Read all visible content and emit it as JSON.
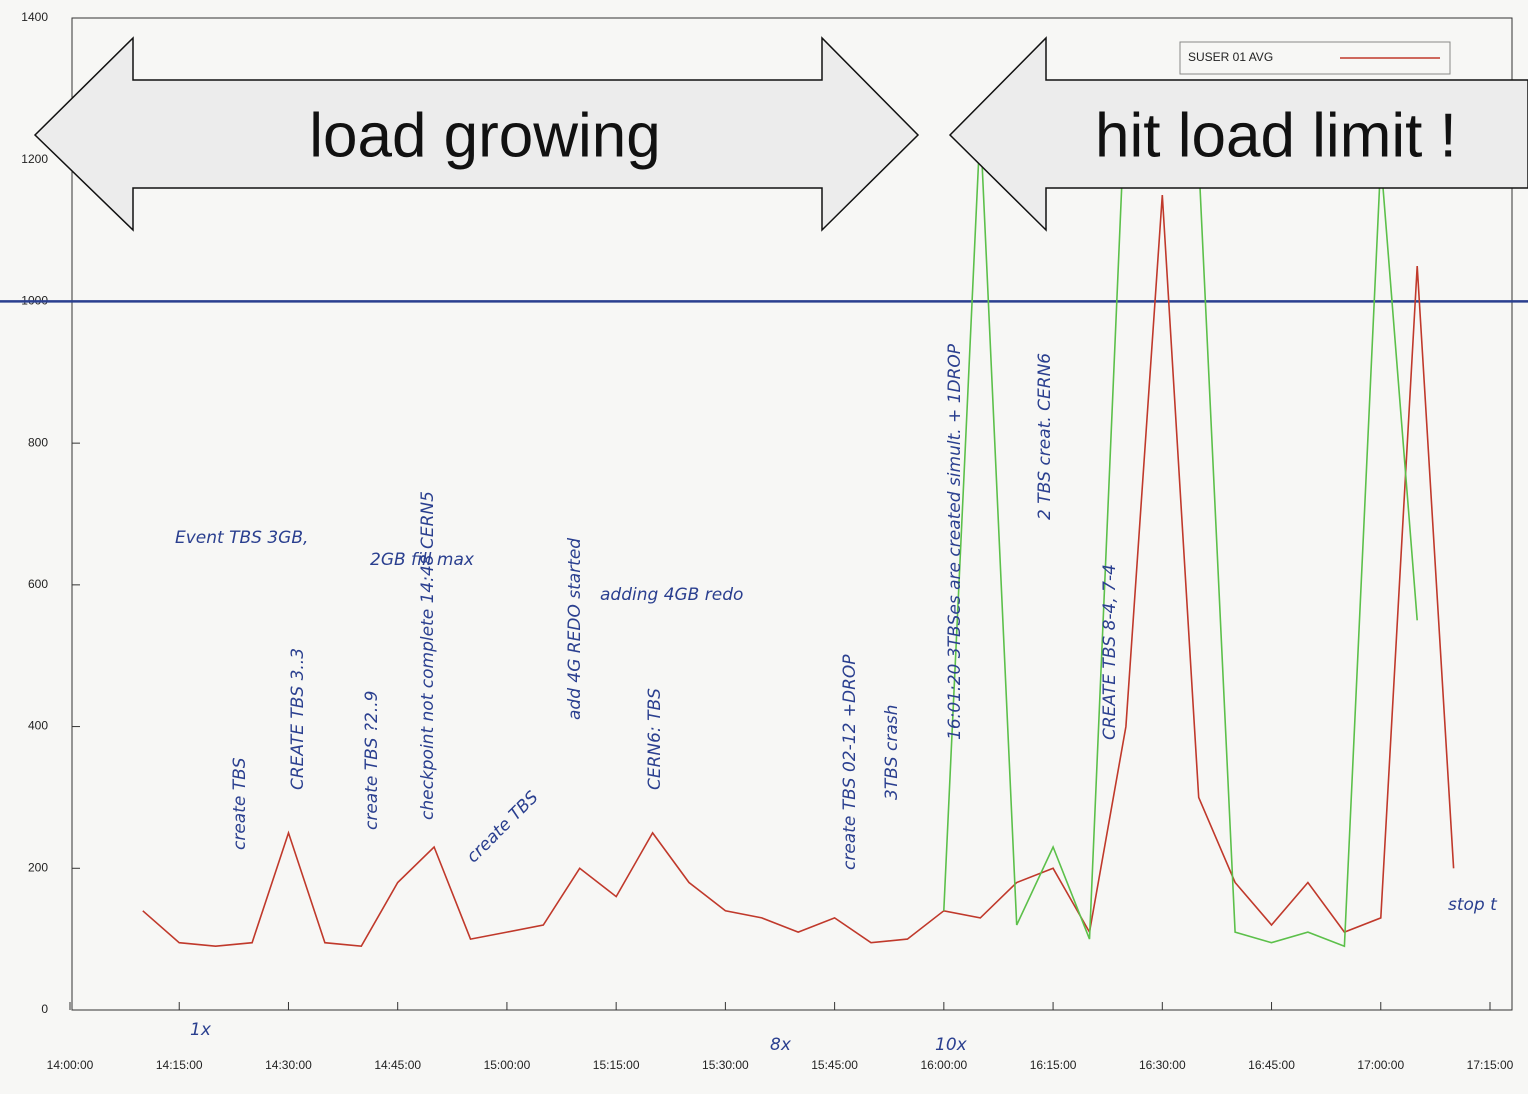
{
  "chart_data": {
    "type": "line",
    "x": [
      "14:10:00",
      "14:15:00",
      "14:20:00",
      "14:25:00",
      "14:30:00",
      "14:35:00",
      "14:40:00",
      "14:45:00",
      "14:50:00",
      "14:55:00",
      "15:00:00",
      "15:05:00",
      "15:10:00",
      "15:15:00",
      "15:20:00",
      "15:25:00",
      "15:30:00",
      "15:35:00",
      "15:40:00",
      "15:45:00",
      "15:50:00",
      "15:55:00",
      "16:00:00",
      "16:05:00",
      "16:10:00",
      "16:15:00",
      "16:20:00",
      "16:25:00",
      "16:30:00",
      "16:35:00",
      "16:40:00",
      "16:45:00",
      "16:50:00",
      "16:55:00",
      "17:00:00",
      "17:05:00",
      "17:10:00"
    ],
    "series": [
      {
        "name": "SUSER 01 AVG",
        "color": "#c0392b",
        "values": [
          140,
          95,
          90,
          95,
          250,
          95,
          90,
          180,
          230,
          100,
          110,
          120,
          200,
          160,
          250,
          180,
          140,
          130,
          110,
          130,
          95,
          100,
          140,
          130,
          180,
          200,
          110,
          400,
          1150,
          300,
          180,
          120,
          180,
          110,
          130,
          1050,
          200
        ]
      },
      {
        "color": "#5cc04a",
        "values": [
          null,
          null,
          null,
          null,
          null,
          null,
          null,
          null,
          null,
          null,
          null,
          null,
          null,
          null,
          null,
          null,
          null,
          null,
          null,
          null,
          null,
          null,
          140,
          1250,
          120,
          230,
          100,
          1300,
          1250,
          1200,
          110,
          95,
          110,
          90,
          1200,
          550,
          null
        ]
      }
    ],
    "reference_line": {
      "value": 1000,
      "color": "#2a3f8f"
    },
    "xlim": [
      "14:00:00",
      "17:15:00"
    ],
    "xticks": [
      "14:00:00",
      "14:15:00",
      "14:30:00",
      "14:45:00",
      "15:00:00",
      "15:15:00",
      "15:30:00",
      "15:45:00",
      "16:00:00",
      "16:15:00",
      "16:30:00",
      "16:45:00",
      "17:00:00",
      "17:15:00"
    ],
    "ylim": [
      0,
      1400
    ],
    "yticks": [
      0,
      200,
      400,
      600,
      800,
      1000,
      1200,
      1400
    ],
    "grid": false,
    "legend": "top-right",
    "arrows": [
      "load growing",
      "hit load limit !"
    ],
    "annotations": [
      "Event TBS 3GB,",
      "2GB fill max",
      "create TBS",
      "CREATE TBS 3..3",
      "create TBS ?2..9",
      "checkpoint not complete 14:48 CERN5",
      "create TBS",
      "add 4G REDO started",
      "adding 4GB redo",
      "CERN6: TBS",
      "create TBS 02-12 +DROP",
      "3TBS crash",
      "16:01:20 3TBSes are created simult. + 1DROP",
      "2 TBS creat. CERN6",
      "CREATE TBS 8-4, 7-4",
      "stop t",
      "1x",
      "8x",
      "10x"
    ]
  }
}
